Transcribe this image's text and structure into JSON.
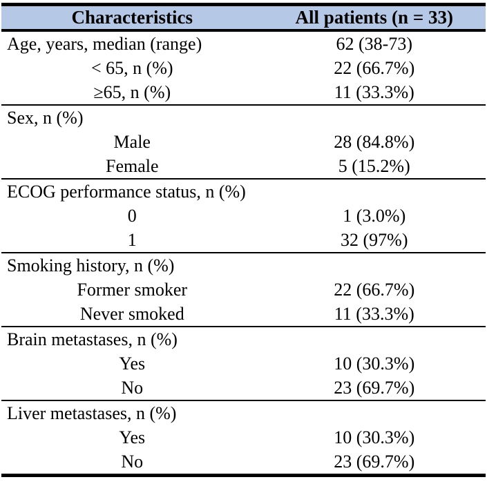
{
  "table": {
    "header": {
      "col1": "Characteristics",
      "col2": "All patients (n = 33)",
      "bg_color": "#b5c8e5",
      "border_color": "#000000"
    },
    "sections": [
      {
        "rows": [
          {
            "label": "Age, years, median (range)",
            "value": "62 (38-73)"
          },
          {
            "label": "< 65, n (%)",
            "value": "22 (66.7%)"
          },
          {
            "label": "≥65, n (%)",
            "value": "11 (33.3%)"
          }
        ]
      },
      {
        "rows": [
          {
            "label": "Sex, n (%)",
            "value": ""
          },
          {
            "label": "Male",
            "value": "28 (84.8%)"
          },
          {
            "label": "Female",
            "value": "5 (15.2%)"
          }
        ]
      },
      {
        "rows": [
          {
            "label": "ECOG performance status, n (%)",
            "value": ""
          },
          {
            "label": "0",
            "value": "1 (3.0%)"
          },
          {
            "label": "1",
            "value": "32 (97%)"
          }
        ]
      },
      {
        "rows": [
          {
            "label": "Smoking history, n (%)",
            "value": ""
          },
          {
            "label": "Former smoker",
            "value": "22 (66.7%)"
          },
          {
            "label": "Never smoked",
            "value": "11 (33.3%)"
          }
        ]
      },
      {
        "rows": [
          {
            "label": "Brain metastases, n (%)",
            "value": ""
          },
          {
            "label": "Yes",
            "value": "10 (30.3%)"
          },
          {
            "label": "No",
            "value": "23 (69.7%)"
          }
        ]
      },
      {
        "rows": [
          {
            "label": "Liver metastases, n (%)",
            "value": ""
          },
          {
            "label": "Yes",
            "value": "10 (30.3%)"
          },
          {
            "label": "No",
            "value": "23 (69.7%)"
          }
        ]
      }
    ]
  }
}
